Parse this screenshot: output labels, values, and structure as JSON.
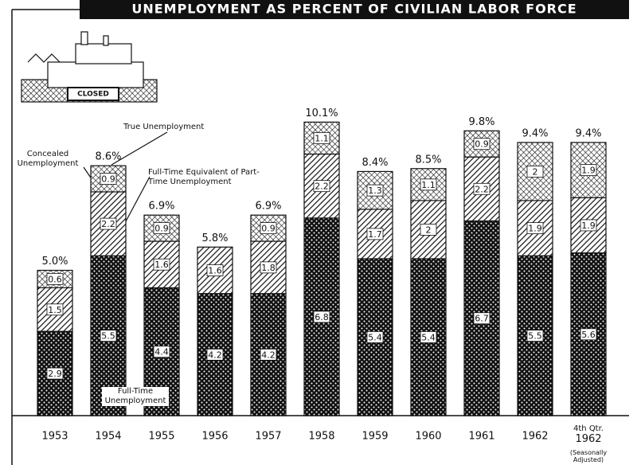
{
  "chart_data": {
    "type": "stacked_bar",
    "title": "UNEMPLOYMENT AS PERCENT OF CIVILIAN LABOR FORCE",
    "illustration_label": "CLOSED",
    "categories": [
      "1953",
      "1954",
      "1955",
      "1956",
      "1957",
      "1958",
      "1959",
      "1960",
      "1961",
      "1962",
      "4th Qtr. 1962"
    ],
    "category_note": "(Seasonally Adjusted)",
    "series": [
      {
        "name": "Full-Time Unemployment",
        "pattern": "dots",
        "color": "#111111",
        "values": [
          2.9,
          5.5,
          4.4,
          4.2,
          4.2,
          6.8,
          5.4,
          5.4,
          6.7,
          5.5,
          5.6
        ]
      },
      {
        "name": "Full-Time Equivalent of Part-Time Unemployment",
        "pattern": "hatch",
        "color": "#111111",
        "values": [
          1.5,
          2.2,
          1.6,
          1.6,
          1.8,
          2.2,
          1.7,
          2.0,
          2.2,
          1.9,
          1.9
        ]
      },
      {
        "name": "Concealed Unemployment",
        "pattern": "crosshatch",
        "color": "#111111",
        "values": [
          0.6,
          0.9,
          0.9,
          null,
          0.9,
          1.1,
          1.3,
          1.1,
          0.9,
          2.0,
          1.9
        ]
      }
    ],
    "totals": [
      5.0,
      8.6,
      6.9,
      5.8,
      6.9,
      10.1,
      8.4,
      8.5,
      9.8,
      9.4,
      9.4
    ],
    "total_labels": [
      "5.0%",
      "8.6%",
      "6.9%",
      "5.8%",
      "6.9%",
      "10.1%",
      "8.4%",
      "8.5%",
      "9.8%",
      "9.4%",
      "9.4%"
    ],
    "annotation": "True Unemployment"
  }
}
